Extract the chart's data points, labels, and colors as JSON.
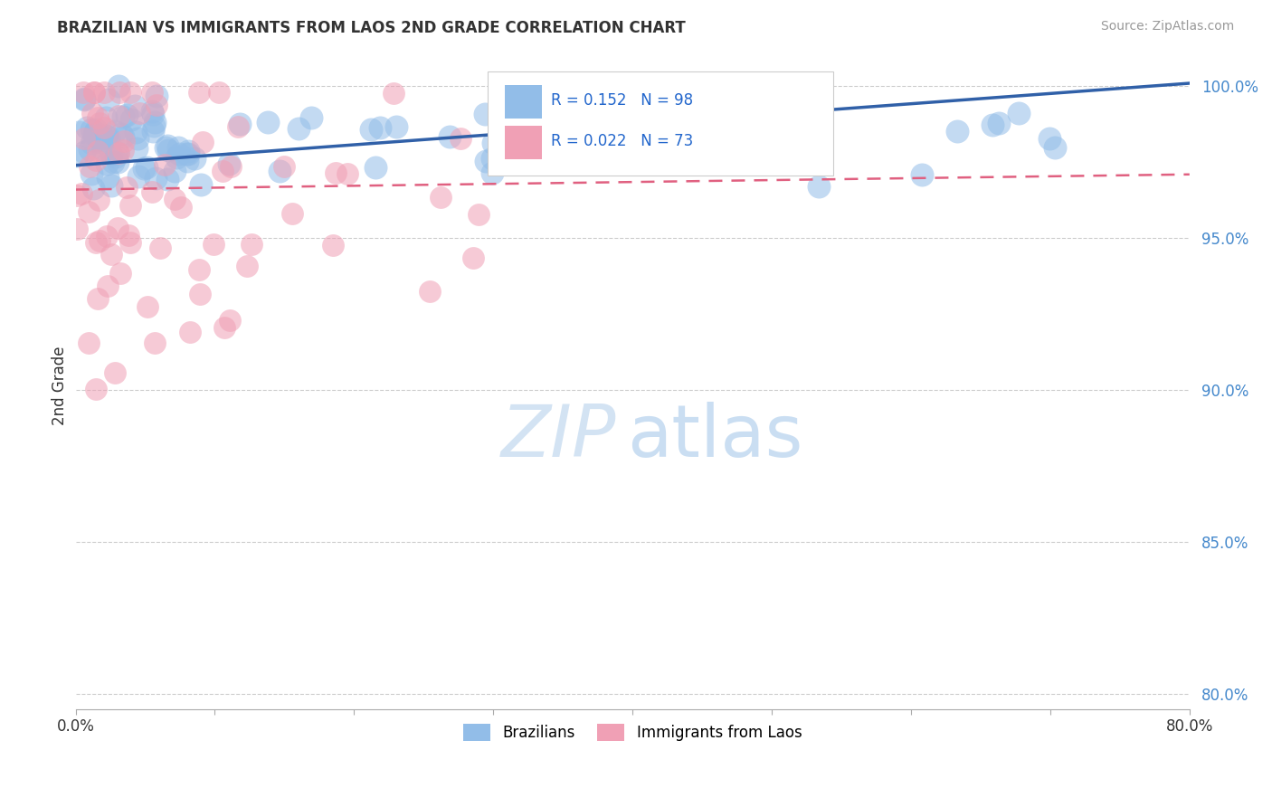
{
  "title": "BRAZILIAN VS IMMIGRANTS FROM LAOS 2ND GRADE CORRELATION CHART",
  "source": "Source: ZipAtlas.com",
  "ylabel": "2nd Grade",
  "xmin": 0.0,
  "xmax": 0.8,
  "ymin": 0.795,
  "ymax": 1.008,
  "ytick_vals": [
    0.8,
    0.85,
    0.9,
    0.95,
    1.0
  ],
  "ytick_labels": [
    "80.0%",
    "85.0%",
    "90.0%",
    "95.0%",
    "100.0%"
  ],
  "xtick_vals": [
    0.0,
    0.1,
    0.2,
    0.3,
    0.4,
    0.5,
    0.6,
    0.7,
    0.8
  ],
  "xtick_labels": [
    "0.0%",
    "",
    "",
    "",
    "",
    "",
    "",
    "",
    "80.0%"
  ],
  "blue_R": 0.152,
  "blue_N": 98,
  "pink_R": 0.022,
  "pink_N": 73,
  "blue_color": "#92BDE8",
  "pink_color": "#F0A0B5",
  "blue_line_color": "#3060A8",
  "pink_line_color": "#E06080",
  "legend_label_blue": "Brazilians",
  "legend_label_pink": "Immigrants from Laos",
  "blue_line_x0": 0.0,
  "blue_line_x1": 0.8,
  "blue_line_y0": 0.974,
  "blue_line_y1": 1.001,
  "pink_line_x0": 0.0,
  "pink_line_x1": 0.8,
  "pink_line_y0": 0.966,
  "pink_line_y1": 0.971,
  "grid_color": "#CCCCCC",
  "grid_linestyle": "--",
  "watermark_zip_color": "#C8DCF0",
  "watermark_atlas_color": "#A0C4E8"
}
